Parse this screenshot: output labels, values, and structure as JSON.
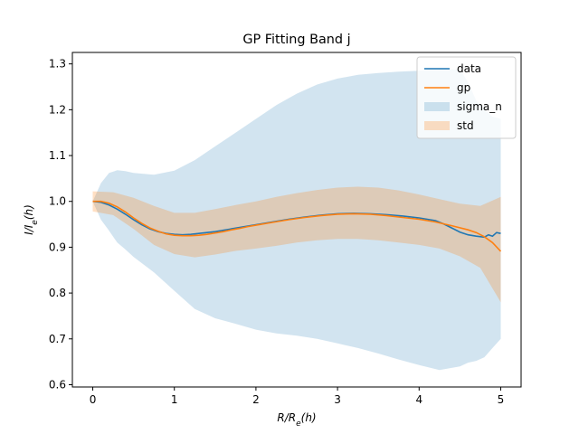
{
  "chart_data": {
    "type": "line",
    "title": "GP Fitting Band j",
    "xlabel": "R/R_e(h)",
    "ylabel": "I/I_e(h)",
    "xlim": [
      -0.25,
      5.25
    ],
    "ylim": [
      0.595,
      1.325
    ],
    "xticks": [
      0,
      1,
      2,
      3,
      4,
      5
    ],
    "yticks": [
      0.6,
      0.7,
      0.8,
      0.9,
      1.0,
      1.1,
      1.2,
      1.3
    ],
    "xtick_labels": [
      "0",
      "1",
      "2",
      "3",
      "4",
      "5"
    ],
    "ytick_labels": [
      "0.6",
      "0.7",
      "0.8",
      "0.9",
      "1.0",
      "1.1",
      "1.2",
      "1.3"
    ],
    "grid": false,
    "legend_position": "top-right",
    "colors": {
      "data": "#1f77b4",
      "gp": "#ff7f0e",
      "sigma_n": "#1f77b4",
      "std": "#ff7f0e"
    },
    "series": [
      {
        "name": "data",
        "kind": "line",
        "x": [
          0,
          0.1,
          0.2,
          0.3,
          0.4,
          0.5,
          0.6,
          0.7,
          0.8,
          0.9,
          1.0,
          1.1,
          1.2,
          1.3,
          1.4,
          1.5,
          1.6,
          1.7,
          1.8,
          1.9,
          2.0,
          2.2,
          2.4,
          2.6,
          2.8,
          3.0,
          3.2,
          3.4,
          3.6,
          3.8,
          4.0,
          4.2,
          4.3,
          4.4,
          4.5,
          4.6,
          4.7,
          4.8,
          4.85,
          4.9,
          4.95,
          5.0
        ],
        "values": [
          1.0,
          0.998,
          0.992,
          0.983,
          0.972,
          0.96,
          0.949,
          0.94,
          0.934,
          0.93,
          0.928,
          0.927,
          0.928,
          0.93,
          0.932,
          0.934,
          0.937,
          0.94,
          0.943,
          0.946,
          0.949,
          0.955,
          0.961,
          0.966,
          0.97,
          0.973,
          0.974,
          0.973,
          0.971,
          0.968,
          0.964,
          0.958,
          0.951,
          0.942,
          0.933,
          0.927,
          0.924,
          0.922,
          0.927,
          0.924,
          0.932,
          0.93
        ]
      },
      {
        "name": "gp",
        "kind": "line",
        "x": [
          0,
          0.1,
          0.2,
          0.3,
          0.4,
          0.5,
          0.6,
          0.7,
          0.8,
          0.9,
          1.0,
          1.1,
          1.2,
          1.3,
          1.4,
          1.5,
          1.6,
          1.7,
          1.8,
          1.9,
          2.0,
          2.2,
          2.4,
          2.6,
          2.8,
          3.0,
          3.2,
          3.4,
          3.6,
          3.8,
          4.0,
          4.2,
          4.4,
          4.6,
          4.7,
          4.8,
          4.9,
          5.0
        ],
        "values": [
          1.0,
          1.0,
          0.996,
          0.988,
          0.977,
          0.964,
          0.952,
          0.942,
          0.935,
          0.929,
          0.926,
          0.925,
          0.925,
          0.926,
          0.928,
          0.931,
          0.934,
          0.938,
          0.941,
          0.945,
          0.948,
          0.954,
          0.96,
          0.965,
          0.969,
          0.972,
          0.973,
          0.972,
          0.969,
          0.965,
          0.961,
          0.955,
          0.947,
          0.938,
          0.932,
          0.923,
          0.91,
          0.891
        ]
      },
      {
        "name": "sigma_n",
        "kind": "band",
        "x": [
          0,
          0.1,
          0.2,
          0.3,
          0.4,
          0.5,
          0.75,
          1.0,
          1.25,
          1.5,
          1.75,
          2.0,
          2.25,
          2.5,
          2.75,
          3.0,
          3.25,
          3.5,
          3.75,
          4.0,
          4.25,
          4.5,
          4.6,
          4.7,
          4.8,
          4.9,
          5.0
        ],
        "upper": [
          1.0,
          1.04,
          1.062,
          1.068,
          1.066,
          1.062,
          1.058,
          1.067,
          1.09,
          1.12,
          1.15,
          1.18,
          1.21,
          1.235,
          1.255,
          1.268,
          1.276,
          1.28,
          1.283,
          1.285,
          1.287,
          1.288,
          1.26,
          1.22,
          1.2,
          1.185,
          1.18
        ],
        "lower": [
          1.0,
          0.96,
          0.936,
          0.91,
          0.895,
          0.879,
          0.845,
          0.805,
          0.765,
          0.745,
          0.733,
          0.72,
          0.712,
          0.707,
          0.7,
          0.69,
          0.68,
          0.668,
          0.655,
          0.643,
          0.632,
          0.64,
          0.648,
          0.652,
          0.66,
          0.68,
          0.7
        ]
      },
      {
        "name": "std",
        "kind": "band",
        "x": [
          0,
          0.25,
          0.5,
          0.75,
          1.0,
          1.25,
          1.5,
          1.75,
          2.0,
          2.25,
          2.5,
          2.75,
          3.0,
          3.25,
          3.5,
          3.75,
          4.0,
          4.25,
          4.5,
          4.75,
          5.0
        ],
        "upper": [
          1.022,
          1.02,
          1.008,
          0.99,
          0.975,
          0.975,
          0.983,
          0.992,
          1.0,
          1.01,
          1.018,
          1.025,
          1.03,
          1.032,
          1.03,
          1.024,
          1.015,
          1.005,
          0.995,
          0.99,
          1.01
        ],
        "lower": [
          0.978,
          0.97,
          0.94,
          0.905,
          0.885,
          0.878,
          0.884,
          0.892,
          0.897,
          0.903,
          0.91,
          0.915,
          0.918,
          0.918,
          0.915,
          0.91,
          0.905,
          0.897,
          0.88,
          0.855,
          0.78
        ]
      }
    ]
  }
}
